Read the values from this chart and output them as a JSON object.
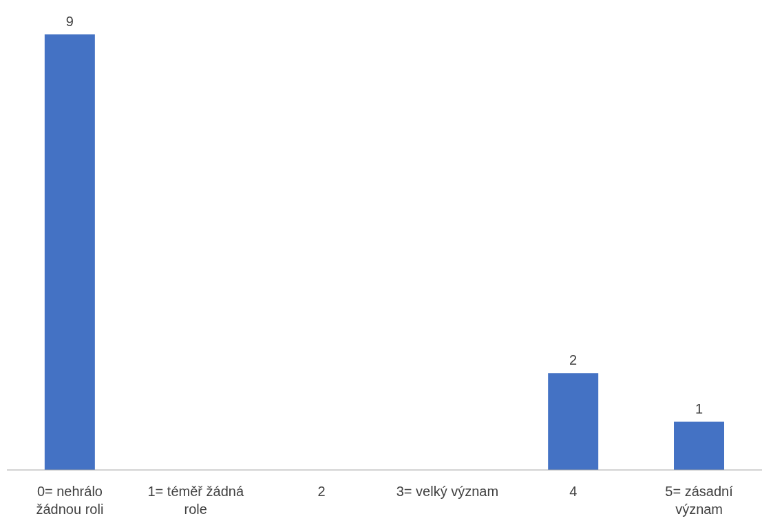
{
  "chart_data": {
    "type": "bar",
    "categories": [
      "0= nehrálo žádnou roli",
      "1= téměř žádná role",
      "2",
      "3= velký význam",
      "4",
      "5= zásadní význam"
    ],
    "values": [
      9,
      0,
      0,
      0,
      2,
      1
    ],
    "value_labels": [
      "9",
      null,
      null,
      null,
      "2",
      "1"
    ],
    "color": "#4472c4",
    "ylim": [
      0,
      9
    ],
    "grid": false
  }
}
